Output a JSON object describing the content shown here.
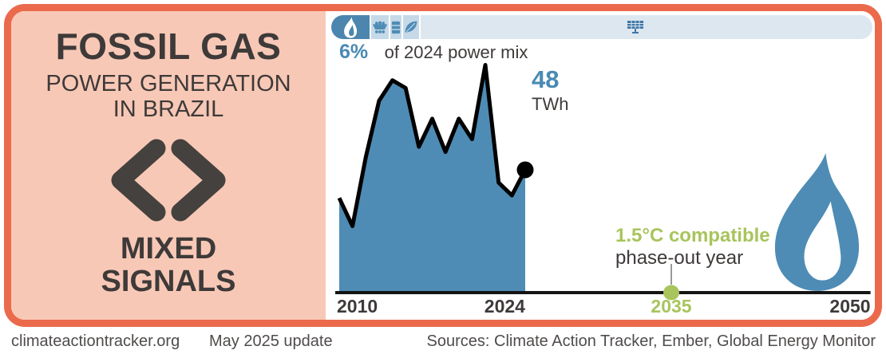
{
  "colors": {
    "accent_orange": "#eb6a4c",
    "panel_pink": "#f8c8b6",
    "steel_blue": "#4e8cb5",
    "light_blue_bar": "#dde7f0",
    "segment_blue": "#c6d9e8",
    "green": "#a8c45c",
    "dark_text": "#3e3a39",
    "line_black": "#141414"
  },
  "card": {
    "left": {
      "title": "FOSSIL GAS",
      "subtitle_line1": "POWER GENERATION",
      "subtitle_line2": "IN BRAZIL",
      "rating_icon": "mixed-signals-chevrons-icon",
      "rating_line1": "MIXED",
      "rating_line2": "SIGNALS"
    },
    "right": {
      "mix_bar": {
        "segments": [
          {
            "name": "fossil-gas",
            "icon": "flame-icon"
          },
          {
            "name": "coal",
            "icon": "coal-cart-icon"
          },
          {
            "name": "oil",
            "icon": "oil-barrel-icon"
          },
          {
            "name": "bioenergy",
            "icon": "leaf-icon"
          },
          {
            "name": "other",
            "icon": "solar-panel-icon"
          }
        ]
      },
      "share_value": "6%",
      "share_label": "of 2024 power mix",
      "latest_value": "48",
      "latest_unit": "TWh",
      "phaseout_line1": "1.5°C compatible",
      "phaseout_line2": "phase-out year"
    }
  },
  "footer": {
    "site": "climateactiontracker.org",
    "update": "May 2025 update",
    "sources": "Sources: Climate Action Tracker, Ember, Global Energy Monitor"
  },
  "chart_data": {
    "type": "area",
    "title": "Fossil gas power generation in Brazil",
    "unit": "TWh",
    "x": [
      2010,
      2011,
      2012,
      2013,
      2014,
      2015,
      2016,
      2017,
      2018,
      2019,
      2020,
      2021,
      2022,
      2023,
      2024
    ],
    "values": [
      37,
      26,
      53,
      75,
      83,
      80,
      57,
      68,
      55,
      68,
      60,
      89,
      43,
      38,
      48
    ],
    "latest": {
      "year": 2024,
      "value": 48
    },
    "phase_out": {
      "year": 2035
    },
    "timeline": {
      "start_year": 2010,
      "end_year": 2050
    },
    "x_ticks": [
      "2010",
      "2024",
      "2035",
      "2050"
    ],
    "ylim": [
      0,
      91
    ],
    "grid": false,
    "area_color": "#4e8cb5",
    "line_color": "#141414"
  }
}
